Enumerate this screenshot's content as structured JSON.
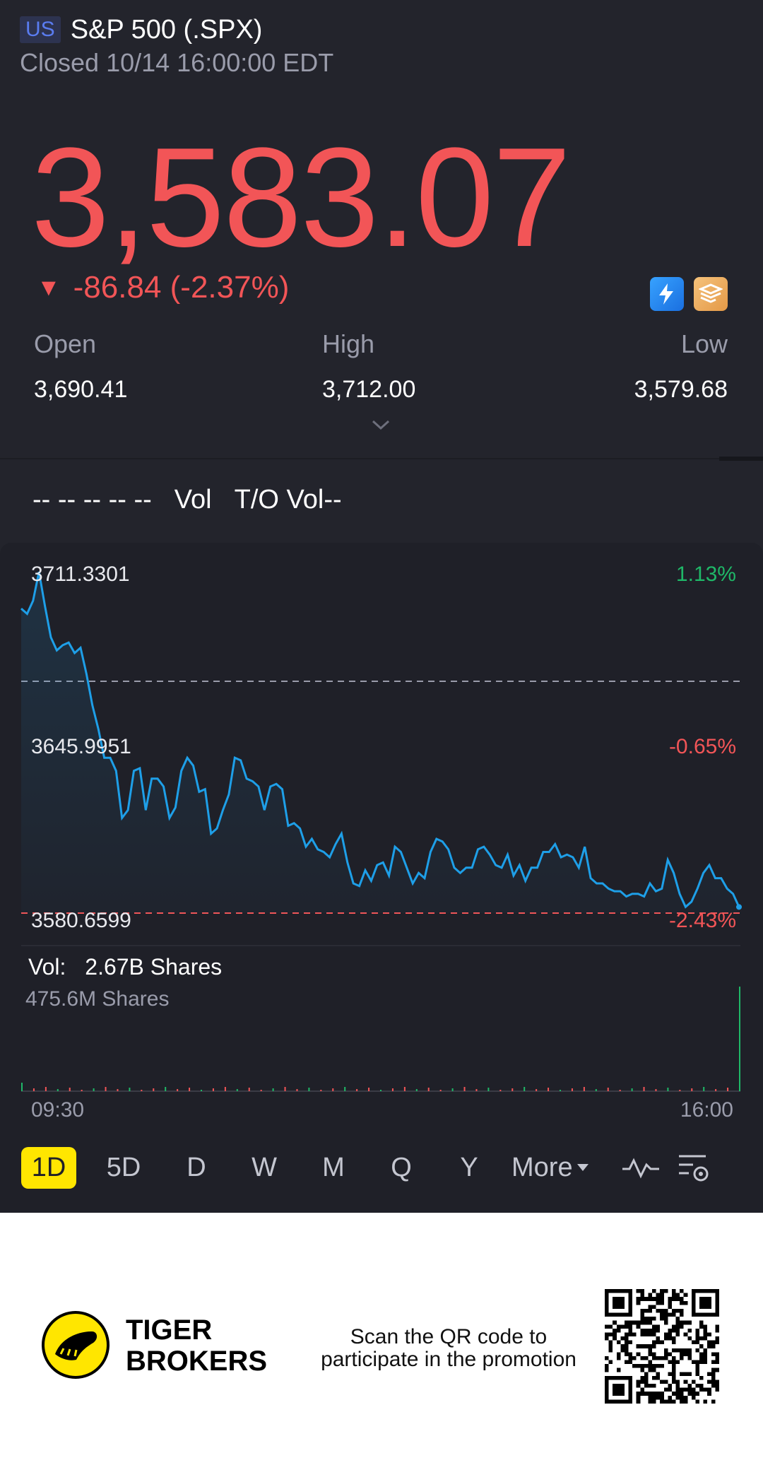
{
  "header": {
    "market_badge": "US",
    "ticker": "S&P 500 (.SPX)",
    "status": "Closed 10/14 16:00:00 EDT"
  },
  "quote": {
    "price": "3,583.07",
    "change_arrow": "▼",
    "change": "-86.84 (-2.37%)",
    "badge_icons": [
      "lightning-level1-icon",
      "stack-a-icon"
    ],
    "color_down": "#f25557"
  },
  "stats": {
    "open_label": "Open",
    "open_value": "3,690.41",
    "high_label": "High",
    "high_value": "3,712.00",
    "low_label": "Low",
    "low_value": "3,579.68"
  },
  "indicators": {
    "dashes": "-- -- -- -- --",
    "vol": "Vol",
    "to_vol": "T/O Vol--"
  },
  "chart_data": {
    "type": "line",
    "x_start": "09:30",
    "x_end": "16:00",
    "ylim": [
      3580.6599,
      3711.3301
    ],
    "reference": 3645.9951,
    "y_labels_left": [
      "3711.3301",
      "3645.9951",
      "3580.6599"
    ],
    "y_labels_right": [
      "1.13%",
      "-0.65%",
      "-2.43%"
    ],
    "series": [
      {
        "color": "#1e9fe8",
        "values": [
          3697,
          3695,
          3700,
          3711,
          3698,
          3686,
          3681,
          3683,
          3684,
          3680,
          3682,
          3672,
          3660,
          3651,
          3640,
          3640,
          3635,
          3617,
          3620,
          3635,
          3636,
          3620,
          3632,
          3632,
          3629,
          3617,
          3621,
          3635,
          3640,
          3637,
          3627,
          3628,
          3611,
          3613,
          3620,
          3626,
          3640,
          3639,
          3632,
          3631,
          3629,
          3620,
          3629,
          3630,
          3628,
          3614,
          3615,
          3613,
          3606,
          3609,
          3605,
          3604,
          3602,
          3607,
          3611,
          3600,
          3592,
          3591,
          3597,
          3593,
          3599,
          3600,
          3595,
          3606,
          3604,
          3598,
          3592,
          3596,
          3594,
          3604,
          3609,
          3608,
          3605,
          3598,
          3596,
          3598,
          3598,
          3605,
          3606,
          3603,
          3599,
          3598,
          3603,
          3595,
          3599,
          3593,
          3598,
          3598,
          3604,
          3604,
          3607,
          3602,
          3603,
          3602,
          3598,
          3606,
          3594,
          3592,
          3592,
          3590,
          3589,
          3589,
          3587,
          3588,
          3588,
          3587,
          3592,
          3589,
          3590,
          3601,
          3596,
          3588,
          3583,
          3585,
          3590,
          3596,
          3599,
          3594,
          3594,
          3590,
          3588,
          3583
        ]
      }
    ],
    "volume": {
      "label": "Vol:",
      "value": "2.67B Shares",
      "max_label": "475.6M Shares",
      "up_color": "#1fb868",
      "down_color": "#f25557"
    }
  },
  "period_tabs": [
    "1D",
    "5D",
    "D",
    "W",
    "M",
    "Q",
    "Y",
    "More"
  ],
  "active_tab": "1D",
  "toolbar_icons": [
    "indicator-wave-icon",
    "chart-settings-icon"
  ],
  "footer": {
    "brand_line1": "TIGER",
    "brand_line2": "BROKERS",
    "promo_line1": "Scan the QR code to",
    "promo_line2": "participate in the promotion"
  }
}
